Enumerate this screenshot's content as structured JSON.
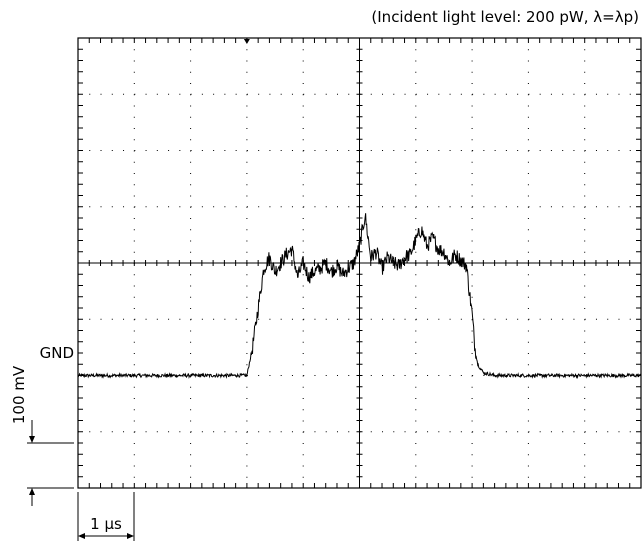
{
  "annotation": "(Incident light level: 200 pW, λ=λp)",
  "gnd_label": "GND",
  "vertical_scale_label": "100 mV",
  "horizontal_scale_label": "1 μs",
  "colors": {
    "trace": "#000000",
    "grid": "#000000",
    "background": "#ffffff"
  },
  "chart_data": {
    "type": "line",
    "title": "",
    "xlabel": "",
    "ylabel": "",
    "grid": true,
    "x_unit": "μs",
    "y_unit": "mV",
    "x_per_div": 1,
    "y_per_div": 100,
    "xlim": [
      0,
      10
    ],
    "ylim": [
      -200,
      600
    ],
    "ground_level": 0,
    "trigger_marker_x": 3,
    "series": [
      {
        "values_x": [
          0,
          0.5,
          1.0,
          1.5,
          2.0,
          2.5,
          2.9,
          3.0,
          3.05,
          3.1,
          3.2,
          3.3,
          3.4,
          3.5,
          3.6,
          3.7,
          3.8,
          3.9,
          4.0,
          4.1,
          4.2,
          4.3,
          4.4,
          4.5,
          4.6,
          4.7,
          4.8,
          4.9,
          5.0,
          5.1,
          5.2,
          5.3,
          5.4,
          5.5,
          5.6,
          5.7,
          5.8,
          5.9,
          6.0,
          6.1,
          6.2,
          6.3,
          6.4,
          6.5,
          6.6,
          6.7,
          6.8,
          6.9,
          6.95,
          7.0,
          7.05,
          7.1,
          7.2,
          7.4,
          7.6,
          8.0,
          8.5,
          9.0,
          9.5,
          10.0
        ],
        "values_y": [
          0,
          0,
          0,
          0,
          0,
          0,
          0,
          0,
          25,
          50,
          120,
          190,
          210,
          185,
          200,
          215,
          225,
          175,
          200,
          175,
          185,
          190,
          200,
          185,
          195,
          180,
          190,
          200,
          230,
          285,
          210,
          220,
          190,
          210,
          200,
          195,
          210,
          215,
          240,
          260,
          230,
          245,
          225,
          220,
          200,
          215,
          205,
          195,
          150,
          110,
          50,
          20,
          5,
          0,
          0,
          0,
          0,
          0,
          0,
          0
        ]
      }
    ]
  }
}
